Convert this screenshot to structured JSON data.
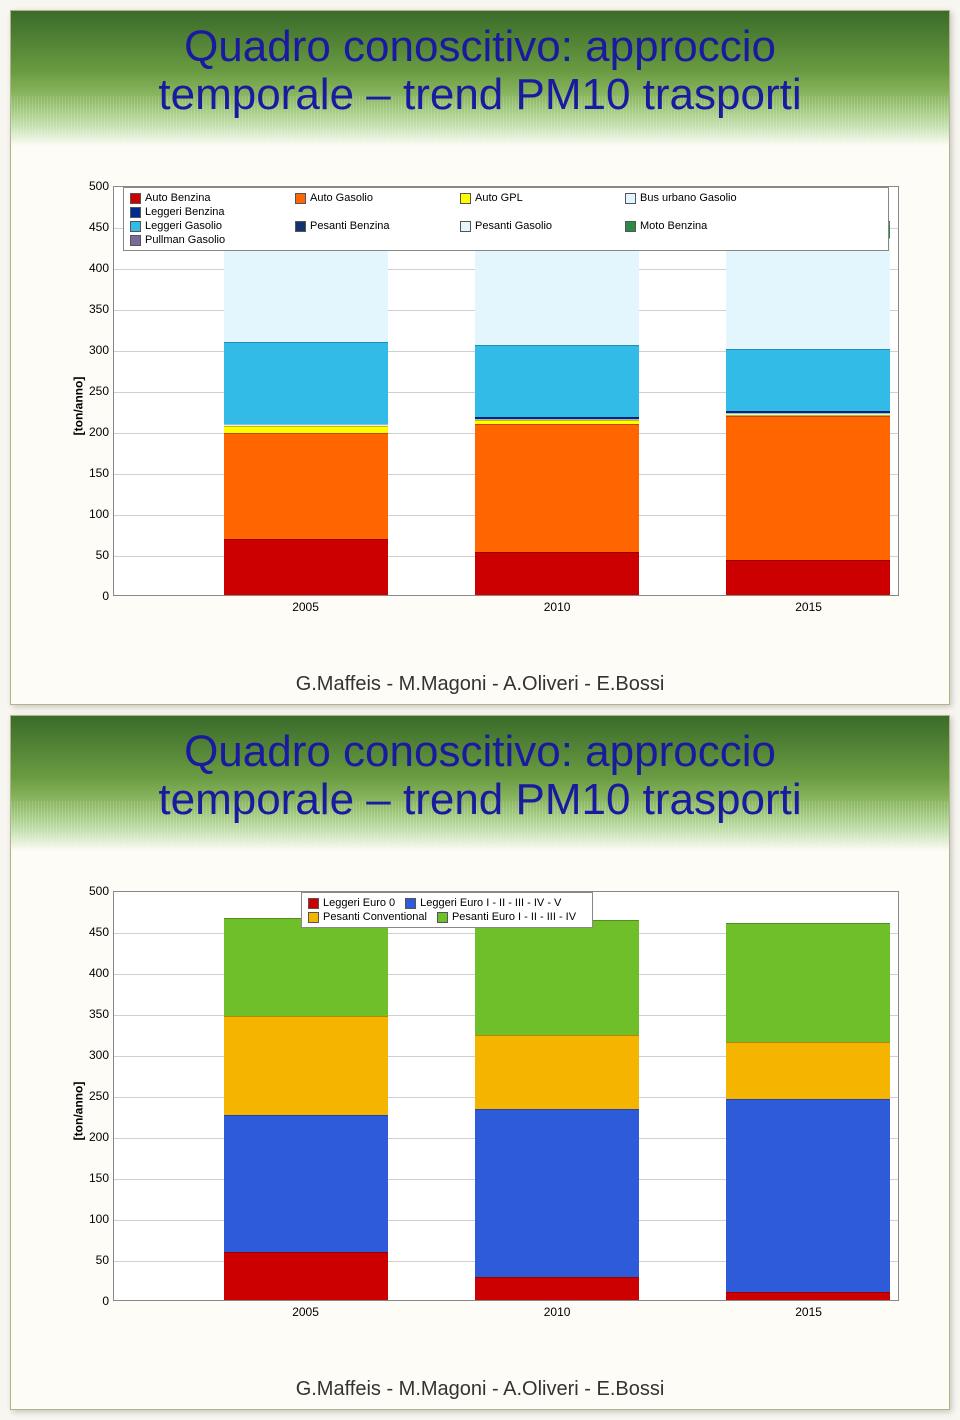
{
  "slides": [
    {
      "title": "Quadro conoscitivo: approccio\ntemporale – trend PM10 trasporti",
      "footer": "G.Maffeis - M.Magoni - A.Oliveri - E.Bossi",
      "chart": {
        "type": "stacked-bar",
        "ylabel": "[ton/anno]",
        "ylim": [
          0,
          500
        ],
        "ytick_step": 50,
        "categories": [
          "2005",
          "2010",
          "2015"
        ],
        "background_color": "#ffffff",
        "grid_color": "#d0d0d0",
        "legend_layout": {
          "rows": 2,
          "cols": 5,
          "position": "top-inside"
        },
        "series": [
          {
            "label": "Auto Benzina",
            "color": "#cc0000"
          },
          {
            "label": "Auto Gasolio",
            "color": "#ff6600"
          },
          {
            "label": "Auto GPL",
            "color": "#ffff00"
          },
          {
            "label": "Bus urbano Gasolio",
            "color": "#dff5ff"
          },
          {
            "label": "Leggeri Benzina",
            "color": "#002a8f"
          },
          {
            "label": "Leggeri Gasolio",
            "color": "#33bbe8"
          },
          {
            "label": "Pesanti Benzina",
            "color": "#13336f"
          },
          {
            "label": "Pesanti Gasolio",
            "color": "#e4f6fd"
          },
          {
            "label": "Moto Benzina",
            "color": "#2b8a46"
          },
          {
            "label": "Pullman Gasolio",
            "color": "#7a6a9a"
          }
        ],
        "data": [
          [
            68,
            130,
            8,
            2,
            0,
            100,
            0,
            135,
            15,
            8
          ],
          [
            52,
            156,
            5,
            2,
            2,
            88,
            0,
            135,
            15,
            7
          ],
          [
            43,
            175,
            2,
            2,
            2,
            76,
            0,
            135,
            15,
            6
          ]
        ]
      }
    },
    {
      "title": "Quadro conoscitivo: approccio\ntemporale – trend PM10 trasporti",
      "footer": "G.Maffeis - M.Magoni - A.Oliveri - E.Bossi",
      "chart": {
        "type": "stacked-bar",
        "ylabel": "[ton/anno]",
        "ylim": [
          0,
          500
        ],
        "ytick_step": 50,
        "categories": [
          "2005",
          "2010",
          "2015"
        ],
        "background_color": "#ffffff",
        "grid_color": "#d0d0d0",
        "legend_layout": {
          "rows": 2,
          "cols": 2,
          "position": "top-center-inside"
        },
        "series": [
          {
            "label": "Leggeri Euro 0",
            "color": "#cc0000"
          },
          {
            "label": "Leggeri Euro I - II - III - IV - V",
            "color": "#2e5bd9"
          },
          {
            "label": "Pesanti Conventional",
            "color": "#f4b400"
          },
          {
            "label": "Pesanti Euro I - II - III - IV",
            "color": "#6fbf2a"
          }
        ],
        "data": [
          [
            58,
            168,
            120,
            120
          ],
          [
            28,
            205,
            90,
            140
          ],
          [
            10,
            235,
            70,
            145
          ]
        ]
      }
    }
  ]
}
